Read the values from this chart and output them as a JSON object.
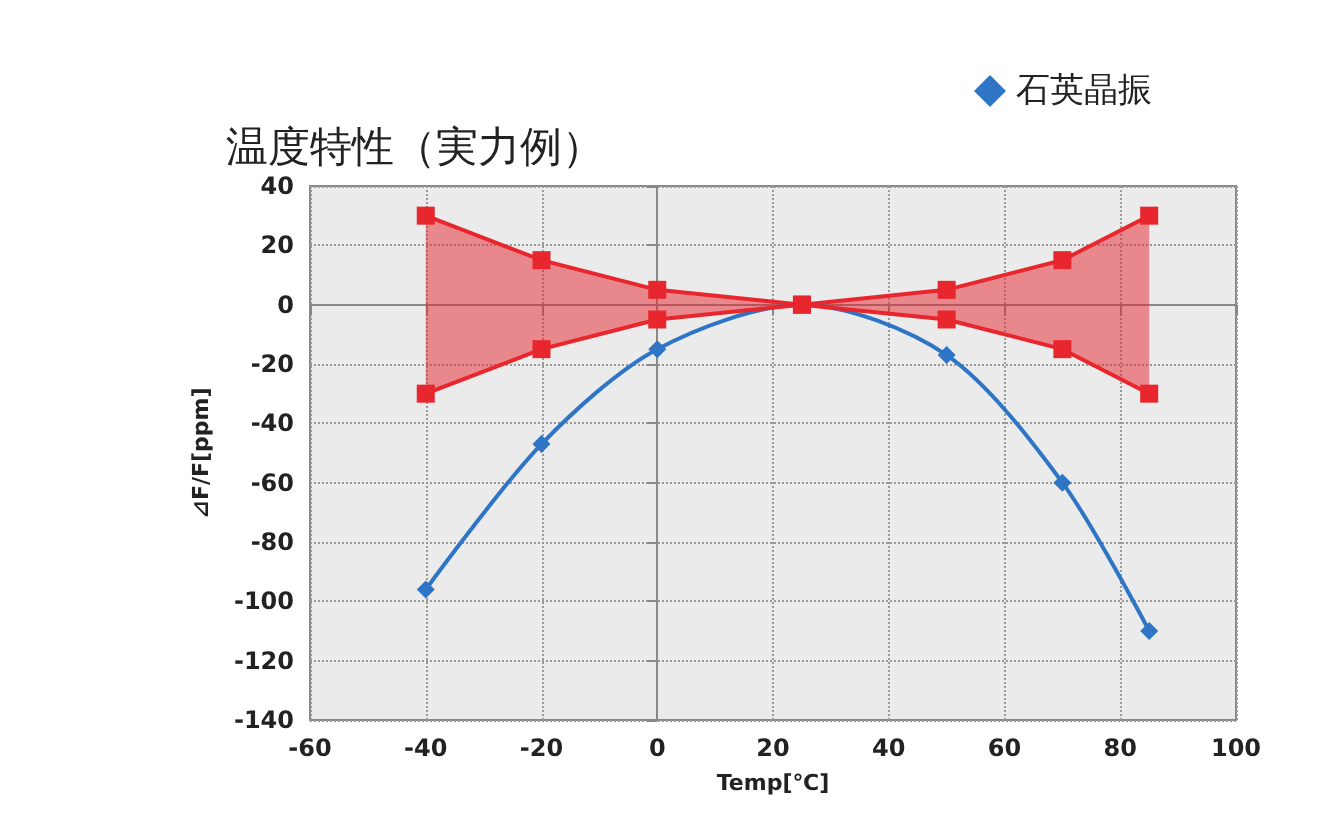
{
  "chart_data": {
    "type": "line",
    "title": "温度特性（実力例）",
    "xlabel": "Temp[℃]",
    "ylabel": "⊿F/F[ppm]",
    "x": [
      -40,
      -20,
      0,
      25,
      50,
      70,
      85
    ],
    "series": [
      {
        "name": "石英晶振",
        "color": "#2e75c6",
        "marker": "diamond",
        "values": [
          -96,
          -47,
          -15,
          0,
          -17,
          -60,
          -110
        ]
      },
      {
        "color": "#e8262d",
        "marker": "square",
        "values": [
          30,
          15,
          5,
          0,
          5,
          15,
          30
        ],
        "lower": [
          -30,
          -15,
          -5,
          0,
          -5,
          -15,
          -30
        ],
        "upper": [
          30,
          15,
          5,
          0,
          5,
          15,
          30
        ]
      },
      {
        "color": "#e8262d",
        "marker": "square",
        "values": [
          -30,
          -15,
          -5,
          0,
          -5,
          -15,
          -30
        ]
      }
    ],
    "xlim": [
      -60,
      100
    ],
    "xticks": [
      -60,
      -40,
      -20,
      0,
      20,
      40,
      60,
      80,
      100
    ],
    "ylim": [
      -140,
      40
    ],
    "yticks": [
      -140,
      -120,
      -100,
      -80,
      -60,
      -40,
      -20,
      0,
      20,
      40
    ],
    "grid": true,
    "legend": "top right",
    "line_style": "solid"
  }
}
